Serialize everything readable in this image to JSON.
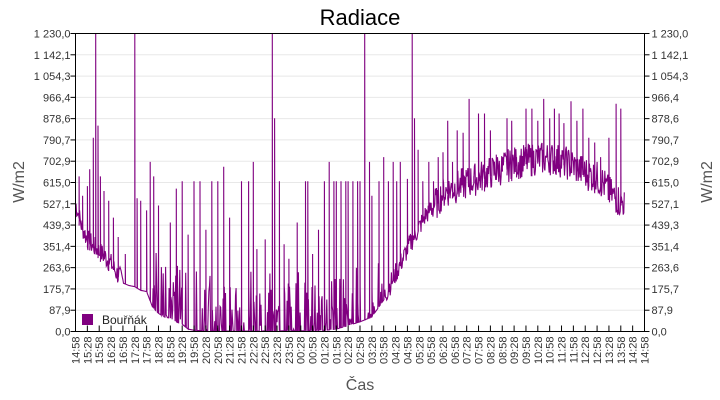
{
  "chart_data": {
    "type": "line",
    "title": "Radiace",
    "xlabel": "Čas",
    "ylabel": "W/m2",
    "ylabel_right": "W/m2",
    "ylim": [
      0,
      1230
    ],
    "grid": true,
    "legend_position": "bottom-left-inside",
    "y_ticks": [
      "0,0",
      "87,9",
      "175,7",
      "263,6",
      "351,4",
      "439,3",
      "527,1",
      "615,0",
      "702,9",
      "790,7",
      "878,6",
      "966,4",
      "1 054,3",
      "1 142,1",
      "1 230,0"
    ],
    "x_ticks": [
      "14:58",
      "15:28",
      "15:58",
      "16:28",
      "16:58",
      "17:28",
      "17:58",
      "18:28",
      "18:58",
      "19:28",
      "19:58",
      "20:28",
      "20:58",
      "21:28",
      "21:58",
      "22:28",
      "22:58",
      "23:28",
      "23:58",
      "00:28",
      "00:58",
      "01:28",
      "01:58",
      "02:28",
      "02:58",
      "03:28",
      "03:58",
      "04:28",
      "04:58",
      "05:28",
      "05:58",
      "06:28",
      "06:58",
      "07:28",
      "07:58",
      "08:28",
      "08:58",
      "09:28",
      "09:58",
      "10:28",
      "10:58",
      "11:28",
      "11:58",
      "12:28",
      "12:58",
      "13:28",
      "13:58",
      "14:28",
      "14:58"
    ],
    "series": [
      {
        "name": "Bouřňák",
        "color": "#800080",
        "baseline": [
          [
            0,
            520
          ],
          [
            0.5,
            430
          ],
          [
            1,
            370
          ],
          [
            1.5,
            345
          ],
          [
            2,
            320
          ],
          [
            2.5,
            300
          ],
          [
            3,
            270
          ],
          [
            3.5,
            230
          ],
          [
            4,
            200
          ],
          [
            4.5,
            190
          ],
          [
            5,
            185
          ],
          [
            5.5,
            170
          ],
          [
            6,
            165
          ],
          [
            6.5,
            100
          ],
          [
            7,
            75
          ],
          [
            7.5,
            60
          ],
          [
            8,
            55
          ],
          [
            8.5,
            40
          ],
          [
            9,
            30
          ],
          [
            9.5,
            10
          ],
          [
            10,
            5
          ],
          [
            11,
            3
          ],
          [
            12,
            2
          ],
          [
            14,
            2
          ],
          [
            16,
            2
          ],
          [
            18,
            3
          ],
          [
            20,
            3
          ],
          [
            21,
            5
          ],
          [
            22,
            10
          ],
          [
            23,
            25
          ],
          [
            24,
            40
          ],
          [
            25,
            60
          ],
          [
            26,
            130
          ],
          [
            26.5,
            180
          ],
          [
            27,
            230
          ],
          [
            27.5,
            280
          ],
          [
            28,
            330
          ],
          [
            28.5,
            380
          ],
          [
            29,
            420
          ],
          [
            29.5,
            470
          ],
          [
            30,
            500
          ],
          [
            30.5,
            520
          ],
          [
            31,
            560
          ],
          [
            31.5,
            570
          ],
          [
            32,
            580
          ],
          [
            33,
            600
          ],
          [
            34,
            620
          ],
          [
            35,
            640
          ],
          [
            36,
            660
          ],
          [
            37,
            680
          ],
          [
            38,
            690
          ],
          [
            39,
            700
          ],
          [
            40,
            700
          ],
          [
            41,
            690
          ],
          [
            42,
            670
          ],
          [
            43,
            640
          ],
          [
            44,
            620
          ],
          [
            44.5,
            600
          ],
          [
            45,
            560
          ],
          [
            46,
            520
          ]
        ],
        "spikes": [
          [
            0.3,
            640
          ],
          [
            0.6,
            560
          ],
          [
            1,
            600
          ],
          [
            1.2,
            670
          ],
          [
            1.5,
            800
          ],
          [
            1.7,
            1230
          ],
          [
            1.9,
            850
          ],
          [
            2.1,
            640
          ],
          [
            2.4,
            580
          ],
          [
            2.8,
            540
          ],
          [
            3.2,
            470
          ],
          [
            3.6,
            390
          ],
          [
            4.2,
            320
          ],
          [
            5,
            1230
          ],
          [
            5.2,
            550
          ],
          [
            5.5,
            540
          ],
          [
            6,
            500
          ],
          [
            6.3,
            700
          ],
          [
            6.6,
            640
          ],
          [
            7,
            520
          ],
          [
            8,
            450
          ],
          [
            8.5,
            590
          ],
          [
            9,
            620
          ],
          [
            9.5,
            400
          ],
          [
            10,
            620
          ],
          [
            10.5,
            620
          ],
          [
            11,
            420
          ],
          [
            11.5,
            620
          ],
          [
            12,
            620
          ],
          [
            12.5,
            680
          ],
          [
            13,
            470
          ],
          [
            14,
            620
          ],
          [
            14.6,
            620
          ],
          [
            15,
            700
          ],
          [
            15.3,
            340
          ],
          [
            16,
            380
          ],
          [
            16.6,
            1230
          ],
          [
            16.8,
            880
          ],
          [
            17.2,
            620
          ],
          [
            17.6,
            360
          ],
          [
            18,
            300
          ],
          [
            18.7,
            450
          ],
          [
            19.4,
            620
          ],
          [
            19.6,
            620
          ],
          [
            20,
            320
          ],
          [
            20.5,
            420
          ],
          [
            21,
            620
          ],
          [
            21.4,
            700
          ],
          [
            21.8,
            620
          ],
          [
            22,
            620
          ],
          [
            22.4,
            620
          ],
          [
            22.8,
            620
          ],
          [
            23,
            620
          ],
          [
            23.4,
            620
          ],
          [
            23.8,
            620
          ],
          [
            24,
            620
          ],
          [
            24.4,
            1230
          ],
          [
            24.8,
            700
          ],
          [
            25,
            560
          ],
          [
            25.6,
            620
          ],
          [
            26,
            720
          ],
          [
            26.4,
            620
          ],
          [
            26.8,
            700
          ],
          [
            27.1,
            620
          ],
          [
            27.4,
            700
          ],
          [
            28,
            630
          ],
          [
            28.4,
            1230
          ],
          [
            28.6,
            880
          ],
          [
            28.9,
            750
          ],
          [
            29.3,
            620
          ],
          [
            29.8,
            700
          ],
          [
            30.2,
            620
          ],
          [
            30.6,
            720
          ],
          [
            31,
            740
          ],
          [
            31.4,
            870
          ],
          [
            31.8,
            700
          ],
          [
            32.2,
            830
          ],
          [
            32.7,
            820
          ],
          [
            33.2,
            960
          ],
          [
            33.6,
            640
          ],
          [
            34,
            900
          ],
          [
            34.5,
            900
          ],
          [
            35,
            830
          ],
          [
            35.5,
            730
          ],
          [
            36,
            680
          ],
          [
            36.4,
            880
          ],
          [
            36.8,
            870
          ],
          [
            37.2,
            720
          ],
          [
            38,
            920
          ],
          [
            38.5,
            920
          ],
          [
            39,
            870
          ],
          [
            39.5,
            960
          ],
          [
            40,
            880
          ],
          [
            40.4,
            920
          ],
          [
            40.8,
            900
          ],
          [
            41.2,
            860
          ],
          [
            41.8,
            950
          ],
          [
            42.3,
            870
          ],
          [
            42.8,
            920
          ],
          [
            43.3,
            800
          ],
          [
            43.8,
            780
          ],
          [
            44.3,
            720
          ],
          [
            45,
            800
          ],
          [
            45.6,
            940
          ],
          [
            46,
            920
          ],
          [
            46.3,
            870
          ]
        ]
      }
    ]
  },
  "legend": {
    "label": "Bouřňák"
  }
}
